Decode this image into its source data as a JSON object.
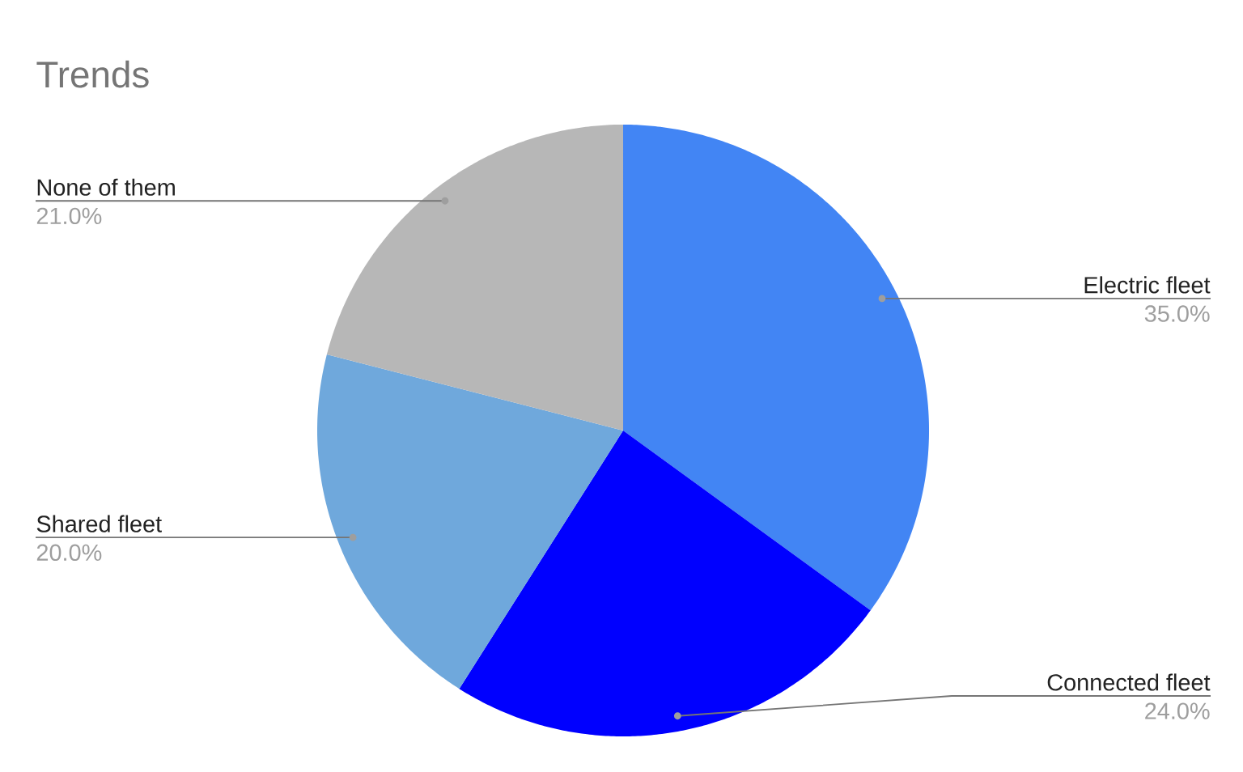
{
  "chart_data": {
    "type": "pie",
    "title": "Trends",
    "categories": [
      "Electric fleet",
      "Connected fleet",
      "Shared fleet",
      "None of them"
    ],
    "values": [
      35,
      24,
      20,
      21
    ],
    "colors": [
      "#4285f4",
      "#0000ff",
      "#6fa8dc",
      "#b7b7b7"
    ],
    "value_labels": [
      "35.0%",
      "24.0%",
      "20.0%",
      "21.0%"
    ]
  }
}
